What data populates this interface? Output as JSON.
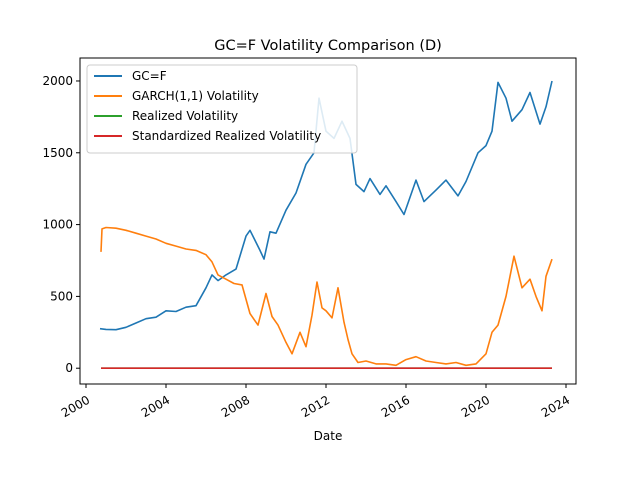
{
  "chart_data": {
    "type": "line",
    "title": "GC=F Volatility Comparison (D)",
    "xlabel": "Date",
    "ylabel": "",
    "xlim": [
      1999.7,
      2024.5
    ],
    "ylim": [
      -110,
      2160
    ],
    "x_ticks": [
      2000,
      2004,
      2008,
      2012,
      2016,
      2020,
      2024
    ],
    "y_ticks": [
      0,
      500,
      1000,
      1500,
      2000
    ],
    "grid": false,
    "legend_position": "top-left",
    "series": [
      {
        "name": "GC=F",
        "color": "#1f77b4",
        "x": [
          2000.7,
          2001.0,
          2001.5,
          2002.0,
          2002.5,
          2003.0,
          2003.5,
          2004.0,
          2004.5,
          2005.0,
          2005.5,
          2006.0,
          2006.3,
          2006.6,
          2007.0,
          2007.5,
          2008.0,
          2008.2,
          2008.7,
          2008.9,
          2009.2,
          2009.5,
          2010.0,
          2010.5,
          2011.0,
          2011.4,
          2011.65,
          2012.0,
          2012.4,
          2012.8,
          2013.2,
          2013.5,
          2013.9,
          2014.2,
          2014.7,
          2015.0,
          2015.5,
          2015.9,
          2016.5,
          2016.9,
          2017.5,
          2018.0,
          2018.6,
          2019.0,
          2019.6,
          2020.0,
          2020.3,
          2020.6,
          2021.0,
          2021.3,
          2021.8,
          2022.2,
          2022.7,
          2023.0,
          2023.3
        ],
        "values": [
          275,
          270,
          268,
          285,
          315,
          345,
          355,
          400,
          395,
          425,
          435,
          560,
          650,
          610,
          650,
          690,
          920,
          960,
          820,
          760,
          950,
          940,
          1100,
          1220,
          1420,
          1500,
          1880,
          1650,
          1600,
          1720,
          1600,
          1280,
          1230,
          1320,
          1210,
          1270,
          1160,
          1070,
          1310,
          1160,
          1240,
          1310,
          1200,
          1300,
          1500,
          1550,
          1650,
          1990,
          1880,
          1720,
          1800,
          1920,
          1700,
          1820,
          2000
        ]
      },
      {
        "name": "GARCH(1,1) Volatility",
        "color": "#ff7f0e",
        "x": [
          2000.75,
          2000.8,
          2001.0,
          2001.5,
          2002.0,
          2002.5,
          2003.0,
          2003.5,
          2004.0,
          2004.5,
          2005.0,
          2005.5,
          2006.0,
          2006.3,
          2006.6,
          2007.0,
          2007.4,
          2007.8,
          2008.2,
          2008.6,
          2009.0,
          2009.3,
          2009.6,
          2010.0,
          2010.3,
          2010.7,
          2011.0,
          2011.3,
          2011.55,
          2011.8,
          2012.0,
          2012.3,
          2012.6,
          2012.9,
          2013.1,
          2013.3,
          2013.6,
          2014.0,
          2014.5,
          2015.0,
          2015.5,
          2016.0,
          2016.5,
          2017.0,
          2017.5,
          2018.0,
          2018.5,
          2019.0,
          2019.5,
          2020.0,
          2020.3,
          2020.6,
          2021.0,
          2021.4,
          2021.8,
          2022.2,
          2022.5,
          2022.8,
          2023.0,
          2023.3
        ],
        "values": [
          810,
          970,
          980,
          975,
          960,
          940,
          920,
          900,
          870,
          850,
          830,
          820,
          790,
          740,
          650,
          620,
          590,
          580,
          380,
          300,
          520,
          360,
          300,
          180,
          100,
          250,
          150,
          370,
          600,
          420,
          400,
          350,
          560,
          320,
          200,
          100,
          40,
          50,
          30,
          30,
          20,
          60,
          80,
          50,
          40,
          30,
          40,
          20,
          30,
          100,
          250,
          300,
          500,
          780,
          560,
          620,
          500,
          400,
          640,
          760
        ]
      },
      {
        "name": "Realized Volatility",
        "color": "#2ca02c",
        "x": [
          2000.75,
          2023.3
        ],
        "values": [
          0,
          0
        ]
      },
      {
        "name": "Standardized Realized Volatility",
        "color": "#d62728",
        "x": [
          2000.75,
          2023.3
        ],
        "values": [
          0,
          0
        ]
      }
    ]
  }
}
